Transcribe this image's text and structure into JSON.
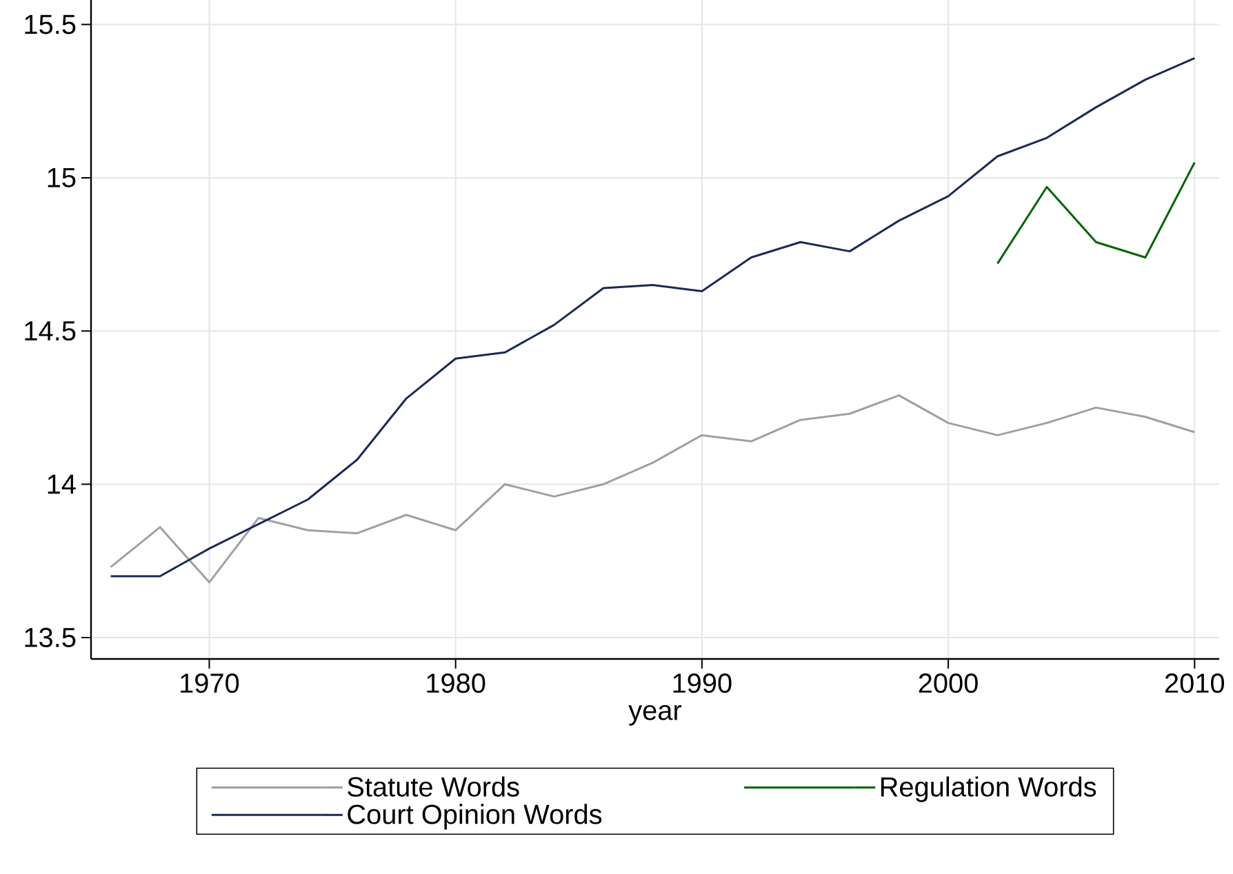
{
  "chart_data": {
    "type": "line",
    "xlabel": "year",
    "x": [
      1966,
      1968,
      1970,
      1972,
      1974,
      1976,
      1978,
      1980,
      1982,
      1984,
      1986,
      1988,
      1990,
      1992,
      1994,
      1996,
      1998,
      2000,
      2002,
      2004,
      2006,
      2008,
      2010
    ],
    "series": [
      {
        "name": "Statute Words",
        "color": "#a0a0a0",
        "values": [
          13.73,
          13.86,
          13.68,
          13.89,
          13.85,
          13.84,
          13.9,
          13.85,
          14.0,
          13.96,
          14.0,
          14.07,
          14.16,
          14.14,
          14.21,
          14.23,
          14.29,
          14.2,
          14.16,
          14.2,
          14.25,
          14.22,
          14.17
        ]
      },
      {
        "name": "Regulation Words",
        "color": "#006400",
        "values": [
          null,
          null,
          null,
          null,
          null,
          null,
          null,
          null,
          null,
          null,
          null,
          null,
          null,
          null,
          null,
          null,
          null,
          null,
          14.72,
          14.97,
          14.79,
          14.74,
          15.05
        ]
      },
      {
        "name": "Court Opinion Words",
        "color": "#1a2a55",
        "values": [
          13.7,
          13.7,
          13.79,
          13.87,
          13.95,
          14.08,
          14.28,
          14.41,
          14.43,
          14.52,
          14.64,
          14.65,
          14.63,
          14.74,
          14.79,
          14.76,
          14.86,
          14.94,
          15.07,
          15.13,
          15.23,
          15.32,
          15.39
        ]
      }
    ],
    "xlim": [
      1965.2,
      2011
    ],
    "ylim": [
      13.43,
      15.58
    ],
    "xticks": [
      1970,
      1980,
      1990,
      2000,
      2010
    ],
    "yticks": [
      13.5,
      14,
      14.5,
      15,
      15.5
    ],
    "grid": true,
    "legend": "bottom",
    "marker": "none",
    "line_style": "solid"
  }
}
